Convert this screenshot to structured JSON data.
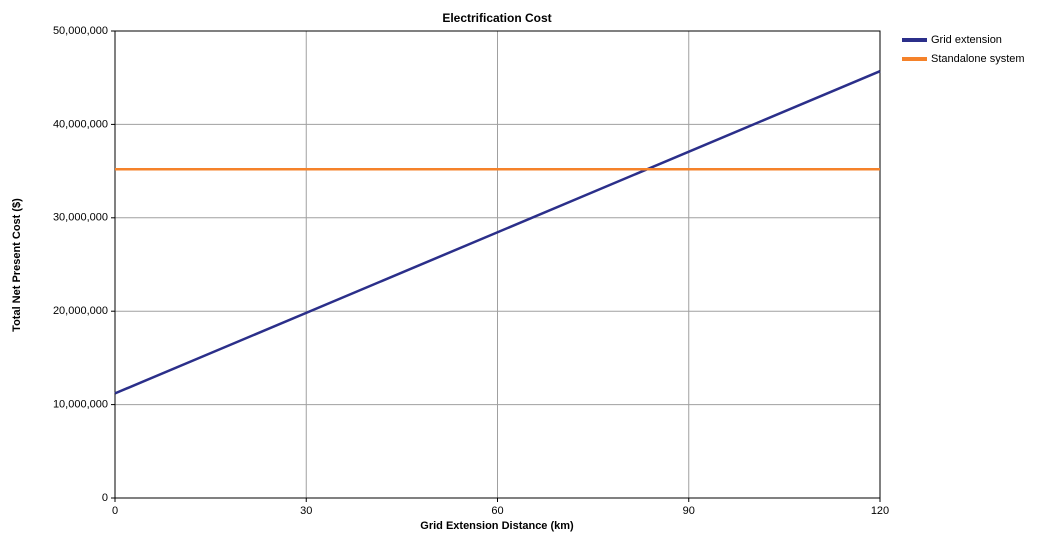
{
  "chart_data": {
    "type": "line",
    "title": "Electrification Cost",
    "x_label": "Grid Extension Distance (km)",
    "y_label": "Total Net Present Cost ($)",
    "x": [
      0,
      120
    ],
    "series": [
      {
        "name": "Grid extension",
        "color": "#2b2f8a",
        "values": [
          11200000,
          45700000
        ]
      },
      {
        "name": "Standalone system",
        "color": "#f5822a",
        "values": [
          35200000,
          35200000
        ]
      }
    ],
    "xlim": [
      0,
      120
    ],
    "xticks": [
      0,
      30,
      60,
      90,
      120
    ],
    "ylim": [
      0,
      50000000
    ],
    "yticks": [
      {
        "value": 0,
        "label": "0"
      },
      {
        "value": 10000000,
        "label": "10,000,000"
      },
      {
        "value": 20000000,
        "label": "20,000,000"
      },
      {
        "value": 30000000,
        "label": "30,000,000"
      },
      {
        "value": 40000000,
        "label": "40,000,000"
      },
      {
        "value": 50000000,
        "label": "50,000,000"
      }
    ],
    "grid": true,
    "legend": "outside-top-right"
  }
}
